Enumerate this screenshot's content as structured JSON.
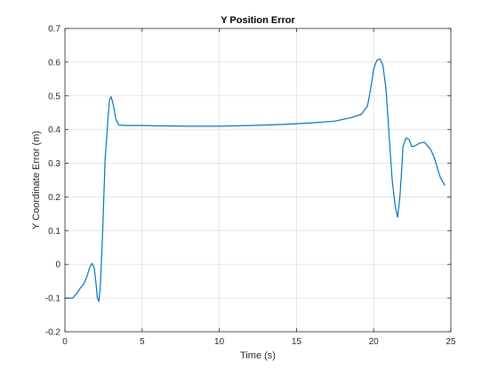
{
  "chart_data": {
    "type": "line",
    "title": "Y Position Error",
    "xlabel": "Time (s)",
    "ylabel": "Y Coordinate Error (m)",
    "xlim": [
      0,
      25
    ],
    "ylim": [
      -0.2,
      0.7
    ],
    "xticks": [
      0,
      5,
      10,
      15,
      20,
      25
    ],
    "xtick_labels": [
      "0",
      "5",
      "10",
      "15",
      "20",
      "25"
    ],
    "yticks": [
      -0.2,
      -0.1,
      0,
      0.1,
      0.2,
      0.3,
      0.4,
      0.5,
      0.6,
      0.7
    ],
    "ytick_labels": [
      "-0.2",
      "-0.1",
      "0",
      "0.1",
      "0.2",
      "0.3",
      "0.4",
      "0.5",
      "0.6",
      "0.7"
    ],
    "grid": true,
    "legend": false,
    "series": [
      {
        "color": "#0072BD",
        "x": [
          0.0,
          0.5,
          0.8,
          1.0,
          1.2,
          1.4,
          1.6,
          1.75,
          1.9,
          2.0,
          2.1,
          2.2,
          2.3,
          2.45,
          2.6,
          2.8,
          2.9,
          3.0,
          3.15,
          3.3,
          3.5,
          3.7,
          4.0,
          5.0,
          6.0,
          8.0,
          10.0,
          12.0,
          14.0,
          16.0,
          17.5,
          18.5,
          19.2,
          19.6,
          19.8,
          20.0,
          20.2,
          20.4,
          20.6,
          20.8,
          21.0,
          21.2,
          21.4,
          21.55,
          21.7,
          21.8,
          21.9,
          22.1,
          22.3,
          22.45,
          22.6,
          22.8,
          23.0,
          23.3,
          23.7,
          23.9,
          24.1,
          24.3,
          24.6
        ],
        "y": [
          -0.1,
          -0.1,
          -0.085,
          -0.07,
          -0.06,
          -0.04,
          -0.01,
          0.003,
          -0.01,
          -0.05,
          -0.1,
          -0.11,
          -0.06,
          0.1,
          0.31,
          0.44,
          0.49,
          0.497,
          0.47,
          0.43,
          0.413,
          0.413,
          0.412,
          0.412,
          0.411,
          0.41,
          0.41,
          0.412,
          0.415,
          0.42,
          0.425,
          0.435,
          0.445,
          0.47,
          0.52,
          0.58,
          0.605,
          0.61,
          0.59,
          0.52,
          0.38,
          0.25,
          0.17,
          0.14,
          0.2,
          0.27,
          0.35,
          0.375,
          0.37,
          0.35,
          0.35,
          0.355,
          0.36,
          0.362,
          0.34,
          0.32,
          0.29,
          0.26,
          0.235
        ]
      }
    ]
  }
}
